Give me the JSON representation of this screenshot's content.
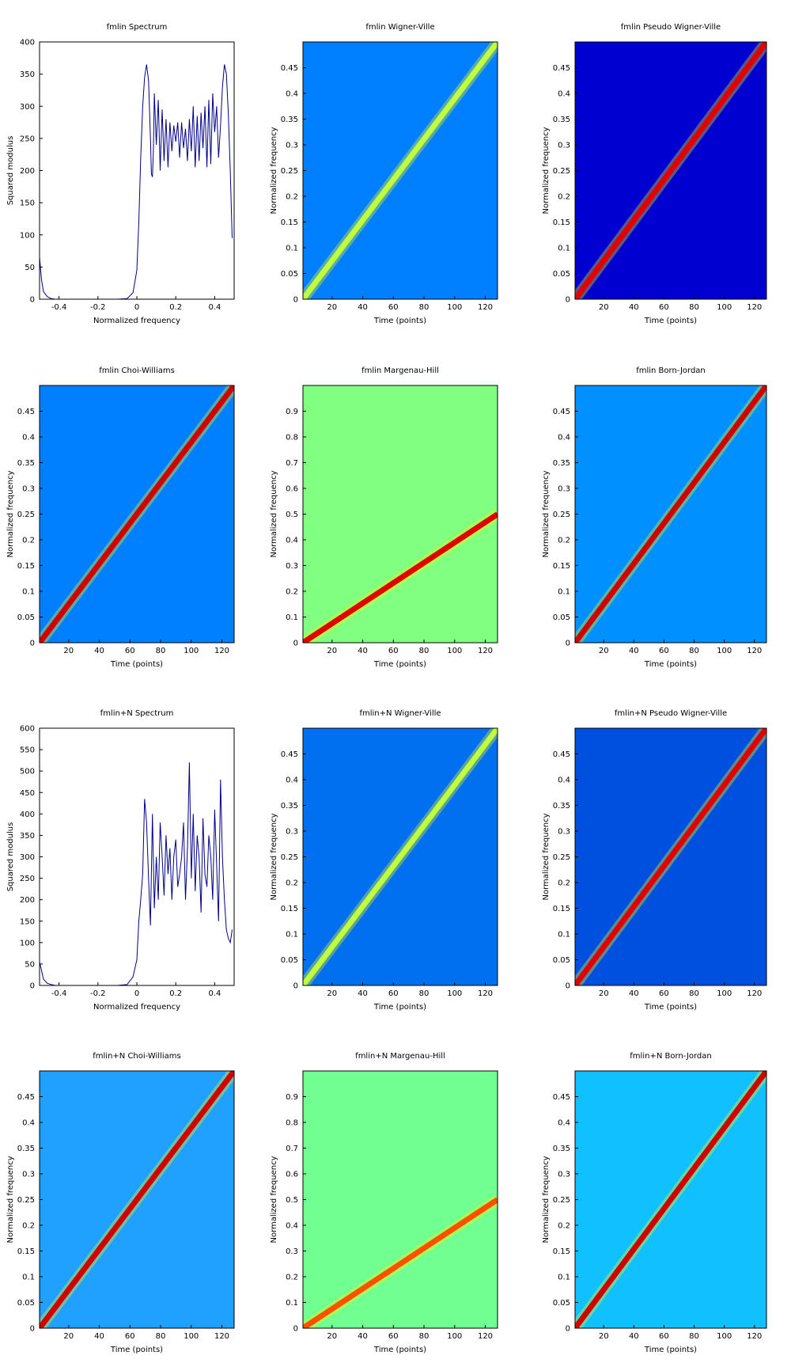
{
  "figure": {
    "background": "#ffffff",
    "line_color": "#00008b"
  },
  "chart_data": [
    {
      "type": "line",
      "title": "fmlin Spectrum",
      "xlabel": "Normalized frequency",
      "ylabel": "Squared modulus",
      "xlim": [
        -0.5,
        0.5
      ],
      "ylim": [
        0,
        400
      ],
      "xticks": [
        -0.4,
        -0.2,
        0,
        0.2,
        0.4
      ],
      "yticks": [
        0,
        50,
        100,
        150,
        200,
        250,
        300,
        350,
        400
      ],
      "series": [
        {
          "x": [
            -0.5,
            -0.49,
            -0.48,
            -0.46,
            -0.44,
            -0.42,
            -0.4,
            -0.3,
            -0.2,
            -0.1,
            -0.05,
            -0.02,
            0.0,
            0.01,
            0.02,
            0.03,
            0.04,
            0.05,
            0.06,
            0.07,
            0.075,
            0.08,
            0.085,
            0.09,
            0.1,
            0.11,
            0.12,
            0.13,
            0.14,
            0.15,
            0.16,
            0.17,
            0.18,
            0.19,
            0.2,
            0.21,
            0.22,
            0.23,
            0.24,
            0.25,
            0.26,
            0.27,
            0.28,
            0.29,
            0.3,
            0.31,
            0.32,
            0.33,
            0.34,
            0.35,
            0.36,
            0.37,
            0.38,
            0.39,
            0.4,
            0.41,
            0.42,
            0.43,
            0.44,
            0.45,
            0.46,
            0.47,
            0.48,
            0.49
          ],
          "y": [
            65,
            30,
            12,
            4,
            1,
            0,
            0,
            0,
            0,
            0,
            1,
            10,
            45,
            120,
            220,
            300,
            345,
            365,
            340,
            250,
            195,
            190,
            230,
            320,
            240,
            310,
            200,
            295,
            215,
            280,
            205,
            275,
            230,
            270,
            245,
            275,
            220,
            275,
            235,
            265,
            215,
            280,
            230,
            300,
            205,
            285,
            215,
            290,
            235,
            300,
            205,
            310,
            210,
            320,
            260,
            300,
            220,
            270,
            330,
            365,
            350,
            290,
            200,
            95
          ]
        }
      ]
    },
    {
      "type": "heatmap",
      "title": "fmlin Wigner-Ville",
      "xlabel": "Time (points)",
      "ylabel": "Normalized frequency",
      "xlim": [
        1,
        128
      ],
      "ylim": [
        0,
        0.5
      ],
      "xticks": [
        20,
        40,
        60,
        80,
        100,
        120
      ],
      "yticks": [
        0,
        0.05,
        0.1,
        0.15,
        0.2,
        0.25,
        0.3,
        0.35,
        0.4,
        0.45
      ],
      "background": "#0080ff",
      "ridge_color": "#c0ff40",
      "ridge": {
        "t": [
          1,
          128
        ],
        "f": [
          0.0,
          0.5
        ]
      }
    },
    {
      "type": "heatmap",
      "title": "fmlin Pseudo Wigner-Ville",
      "xlabel": "Time (points)",
      "ylabel": "Normalized frequency",
      "xlim": [
        1,
        128
      ],
      "ylim": [
        0,
        0.5
      ],
      "xticks": [
        20,
        40,
        60,
        80,
        100,
        120
      ],
      "yticks": [
        0,
        0.05,
        0.1,
        0.15,
        0.2,
        0.25,
        0.3,
        0.35,
        0.4,
        0.45
      ],
      "background": "#0000d0",
      "ridge_color": "#e00000",
      "ridge": {
        "t": [
          1,
          128
        ],
        "f": [
          0.0,
          0.5
        ]
      }
    },
    {
      "type": "heatmap",
      "title": "fmlin Choi-Williams",
      "xlabel": "Time (points)",
      "ylabel": "Normalized frequency",
      "xlim": [
        1,
        128
      ],
      "ylim": [
        0,
        0.5
      ],
      "xticks": [
        20,
        40,
        60,
        80,
        100,
        120
      ],
      "yticks": [
        0,
        0.05,
        0.1,
        0.15,
        0.2,
        0.25,
        0.3,
        0.35,
        0.4,
        0.45
      ],
      "background": "#0080ff",
      "ridge_color": "#d00000",
      "ridge": {
        "t": [
          1,
          128
        ],
        "f": [
          0.0,
          0.5
        ]
      }
    },
    {
      "type": "heatmap",
      "title": "fmlin Margenau-Hill",
      "xlabel": "Time (points)",
      "ylabel": "Normalized frequency",
      "xlim": [
        1,
        128
      ],
      "ylim": [
        0,
        1
      ],
      "xticks": [
        20,
        40,
        60,
        80,
        100,
        120
      ],
      "yticks": [
        0,
        0.1,
        0.2,
        0.3,
        0.4,
        0.5,
        0.6,
        0.7,
        0.8,
        0.9
      ],
      "background": "#80ff80",
      "ridge_color": "#e00000",
      "ridge": {
        "t": [
          1,
          128
        ],
        "f": [
          0.0,
          0.5
        ]
      }
    },
    {
      "type": "heatmap",
      "title": "fmlin Born-Jordan",
      "xlabel": "Time (points)",
      "ylabel": "Normalized frequency",
      "xlim": [
        1,
        128
      ],
      "ylim": [
        0,
        0.5
      ],
      "xticks": [
        20,
        40,
        60,
        80,
        100,
        120
      ],
      "yticks": [
        0,
        0.05,
        0.1,
        0.15,
        0.2,
        0.25,
        0.3,
        0.35,
        0.4,
        0.45
      ],
      "background": "#0090ff",
      "ridge_color": "#d00000",
      "ridge": {
        "t": [
          1,
          128
        ],
        "f": [
          0.0,
          0.5
        ]
      }
    },
    {
      "type": "line",
      "title": "fmlin+N Spectrum",
      "xlabel": "Normalized frequency",
      "ylabel": "Squared modulus",
      "xlim": [
        -0.5,
        0.5
      ],
      "ylim": [
        0,
        600
      ],
      "xticks": [
        -0.4,
        -0.2,
        0,
        0.2,
        0.4
      ],
      "yticks": [
        0,
        50,
        100,
        150,
        200,
        250,
        300,
        350,
        400,
        450,
        500,
        550,
        600
      ],
      "series": [
        {
          "x": [
            -0.5,
            -0.49,
            -0.48,
            -0.46,
            -0.44,
            -0.42,
            -0.4,
            -0.3,
            -0.2,
            -0.1,
            -0.05,
            -0.02,
            0.0,
            0.01,
            0.02,
            0.03,
            0.04,
            0.05,
            0.06,
            0.07,
            0.08,
            0.09,
            0.1,
            0.11,
            0.12,
            0.13,
            0.14,
            0.15,
            0.16,
            0.17,
            0.18,
            0.19,
            0.2,
            0.21,
            0.22,
            0.23,
            0.24,
            0.25,
            0.26,
            0.27,
            0.28,
            0.29,
            0.3,
            0.31,
            0.32,
            0.33,
            0.34,
            0.35,
            0.36,
            0.37,
            0.38,
            0.39,
            0.4,
            0.41,
            0.42,
            0.43,
            0.44,
            0.45,
            0.46,
            0.47,
            0.48,
            0.49
          ],
          "y": [
            55,
            35,
            15,
            5,
            2,
            0,
            0,
            0,
            0,
            0,
            2,
            20,
            60,
            150,
            200,
            260,
            435,
            380,
            250,
            140,
            400,
            180,
            300,
            200,
            380,
            300,
            210,
            350,
            260,
            320,
            200,
            300,
            340,
            230,
            260,
            300,
            380,
            200,
            320,
            520,
            250,
            400,
            220,
            350,
            300,
            170,
            390,
            260,
            230,
            350,
            300,
            200,
            410,
            280,
            150,
            480,
            300,
            200,
            130,
            110,
            100,
            130
          ]
        }
      ]
    },
    {
      "type": "heatmap",
      "title": "fmlin+N Wigner-Ville",
      "xlabel": "Time (points)",
      "ylabel": "Normalized frequency",
      "xlim": [
        1,
        128
      ],
      "ylim": [
        0,
        0.5
      ],
      "xticks": [
        20,
        40,
        60,
        80,
        100,
        120
      ],
      "yticks": [
        0,
        0.05,
        0.1,
        0.15,
        0.2,
        0.25,
        0.3,
        0.35,
        0.4,
        0.45
      ],
      "background": "#0070f0",
      "ridge_color": "#c0ff40",
      "ridge": {
        "t": [
          1,
          128
        ],
        "f": [
          0.0,
          0.5
        ]
      }
    },
    {
      "type": "heatmap",
      "title": "fmlin+N Pseudo Wigner-Ville",
      "xlabel": "Time (points)",
      "ylabel": "Normalized frequency",
      "xlim": [
        1,
        128
      ],
      "ylim": [
        0,
        0.5
      ],
      "xticks": [
        20,
        40,
        60,
        80,
        100,
        120
      ],
      "yticks": [
        0,
        0.05,
        0.1,
        0.15,
        0.2,
        0.25,
        0.3,
        0.35,
        0.4,
        0.45
      ],
      "background": "#0050e0",
      "ridge_color": "#e00000",
      "ridge": {
        "t": [
          1,
          128
        ],
        "f": [
          0.0,
          0.5
        ]
      }
    },
    {
      "type": "heatmap",
      "title": "fmlin+N Choi-Williams",
      "xlabel": "Time (points)",
      "ylabel": "Normalized frequency",
      "xlim": [
        1,
        128
      ],
      "ylim": [
        0,
        0.5
      ],
      "xticks": [
        20,
        40,
        60,
        80,
        100,
        120
      ],
      "yticks": [
        0,
        0.05,
        0.1,
        0.15,
        0.2,
        0.25,
        0.3,
        0.35,
        0.4,
        0.45
      ],
      "background": "#20a0ff",
      "ridge_color": "#d00000",
      "ridge": {
        "t": [
          1,
          128
        ],
        "f": [
          0.0,
          0.5
        ]
      }
    },
    {
      "type": "heatmap",
      "title": "fmlin+N Margenau-Hill",
      "xlabel": "Time (points)",
      "ylabel": "Normalized frequency",
      "xlim": [
        1,
        128
      ],
      "ylim": [
        0,
        1
      ],
      "xticks": [
        20,
        40,
        60,
        80,
        100,
        120
      ],
      "yticks": [
        0,
        0.1,
        0.2,
        0.3,
        0.4,
        0.5,
        0.6,
        0.7,
        0.8,
        0.9
      ],
      "background": "#70ff90",
      "ridge_color": "#ff5000",
      "ridge": {
        "t": [
          1,
          128
        ],
        "f": [
          0.0,
          0.5
        ]
      }
    },
    {
      "type": "heatmap",
      "title": "fmlin+N Born-Jordan",
      "xlabel": "Time (points)",
      "ylabel": "Normalized frequency",
      "xlim": [
        1,
        128
      ],
      "ylim": [
        0,
        0.5
      ],
      "xticks": [
        20,
        40,
        60,
        80,
        100,
        120
      ],
      "yticks": [
        0,
        0.05,
        0.1,
        0.15,
        0.2,
        0.25,
        0.3,
        0.35,
        0.4,
        0.45
      ],
      "background": "#10c0ff",
      "ridge_color": "#d00000",
      "ridge": {
        "t": [
          1,
          128
        ],
        "f": [
          0.0,
          0.5
        ]
      }
    }
  ]
}
